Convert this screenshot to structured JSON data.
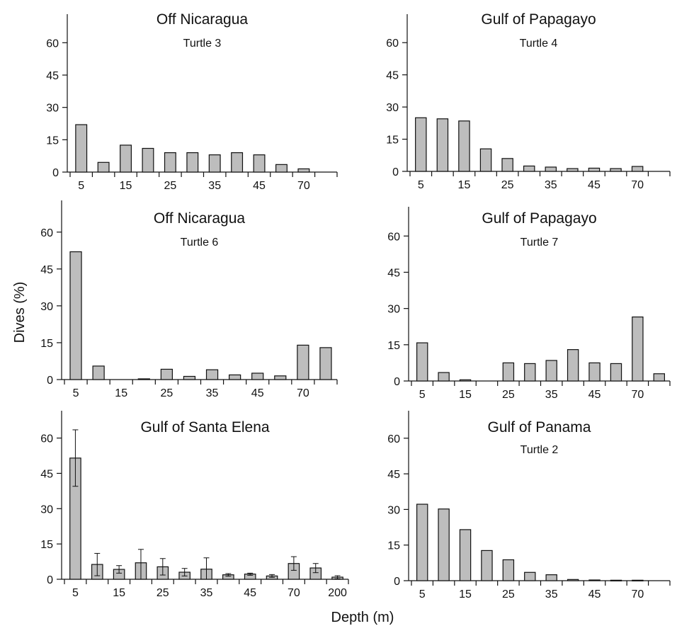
{
  "figure": {
    "ylabel": "Dives (%)",
    "xlabel": "Depth (m)"
  },
  "chart_data": [
    {
      "type": "bar",
      "title": "Off Nicaragua",
      "subtitle": "Turtle 3",
      "ylim": [
        0,
        68
      ],
      "yticks": [
        0,
        15,
        30,
        45,
        60
      ],
      "xtick_labels": [
        "5",
        "15",
        "25",
        "35",
        "45",
        "70"
      ],
      "values": [
        22,
        4.5,
        12.5,
        11,
        9,
        9,
        8,
        9,
        8,
        3.5,
        1.5,
        0
      ]
    },
    {
      "type": "bar",
      "title": "Gulf of Papagayo",
      "subtitle": "Turtle 4",
      "ylim": [
        0,
        68
      ],
      "yticks": [
        0,
        15,
        30,
        45,
        60
      ],
      "xtick_labels": [
        "5",
        "15",
        "25",
        "35",
        "45",
        "70"
      ],
      "values": [
        25,
        24.5,
        23.5,
        10.5,
        6,
        2.5,
        2,
        1.3,
        1.5,
        1.3,
        2.3,
        0
      ]
    },
    {
      "type": "bar",
      "title": "Off Nicaragua",
      "subtitle": "Turtle 6",
      "ylim": [
        0,
        68
      ],
      "yticks": [
        0,
        15,
        30,
        45,
        60
      ],
      "xtick_labels": [
        "5",
        "15",
        "25",
        "35",
        "45",
        "70"
      ],
      "values": [
        52,
        5.5,
        0,
        0.3,
        4.2,
        1.3,
        4,
        1.9,
        2.6,
        1.5,
        14,
        13
      ]
    },
    {
      "type": "bar",
      "title": "Gulf of Papagayo",
      "subtitle": "Turtle 7",
      "ylim": [
        0,
        68
      ],
      "yticks": [
        0,
        15,
        30,
        45,
        60
      ],
      "xtick_labels": [
        "5",
        "15",
        "25",
        "35",
        "45",
        "70"
      ],
      "values": [
        15.8,
        3.5,
        0.5,
        0,
        7.5,
        7.2,
        8.5,
        13,
        7.5,
        7.2,
        26.5,
        3
      ]
    },
    {
      "type": "bar",
      "title": "Gulf of Santa Elena",
      "subtitle": "",
      "ylim": [
        0,
        68
      ],
      "yticks": [
        0,
        15,
        30,
        45,
        60
      ],
      "xtick_labels": [
        "5",
        "15",
        "25",
        "35",
        "45",
        "70",
        "200"
      ],
      "values": [
        51.5,
        6.3,
        4.2,
        7,
        5.3,
        3,
        4.3,
        1.9,
        2.2,
        1.4,
        6.7,
        4.8,
        0.9
      ],
      "error_low": [
        39.5,
        1.5,
        2.6,
        0,
        1.8,
        1.4,
        0,
        1.3,
        1.7,
        0.8,
        3.8,
        2.8,
        0.2
      ],
      "error_high": [
        63.5,
        11,
        5.8,
        12.7,
        8.8,
        4.6,
        9.1,
        2.4,
        2.6,
        2,
        9.6,
        6.7,
        1.5
      ]
    },
    {
      "type": "bar",
      "title": "Gulf of Panama",
      "subtitle": "Turtle 2",
      "ylim": [
        0,
        68
      ],
      "yticks": [
        0,
        15,
        30,
        45,
        60
      ],
      "xtick_labels": [
        "5",
        "15",
        "25",
        "35",
        "45",
        "70"
      ],
      "values": [
        32.2,
        30.2,
        21.5,
        12.7,
        8.8,
        3.5,
        2.5,
        0.5,
        0.3,
        0.2,
        0.2,
        0
      ]
    }
  ]
}
